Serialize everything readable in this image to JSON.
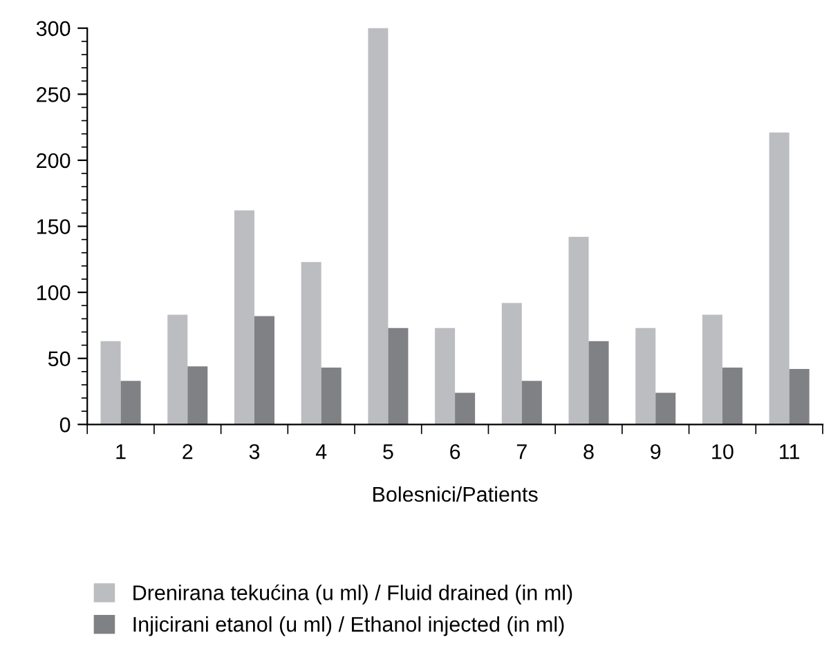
{
  "chart_data": {
    "type": "bar",
    "xlabel": "Bolesnici/Patients",
    "categories": [
      "1",
      "2",
      "3",
      "4",
      "5",
      "6",
      "7",
      "8",
      "9",
      "10",
      "11"
    ],
    "series": [
      {
        "name": "Drenirana tekućina (u ml) / Fluid drained (in ml)",
        "color": "#bcbdc1",
        "values": [
          63,
          83,
          162,
          123,
          300,
          73,
          92,
          142,
          73,
          83,
          221
        ]
      },
      {
        "name": "Injicirani etanol (u ml) / Ethanol injected (in ml)",
        "color": "#808185",
        "values": [
          33,
          44,
          82,
          43,
          73,
          24,
          33,
          63,
          24,
          43,
          42
        ]
      }
    ],
    "ylim": [
      0,
      300
    ],
    "yticks": [
      0,
      50,
      100,
      150,
      200,
      250,
      300
    ],
    "grid": false,
    "legend": "bottom"
  }
}
